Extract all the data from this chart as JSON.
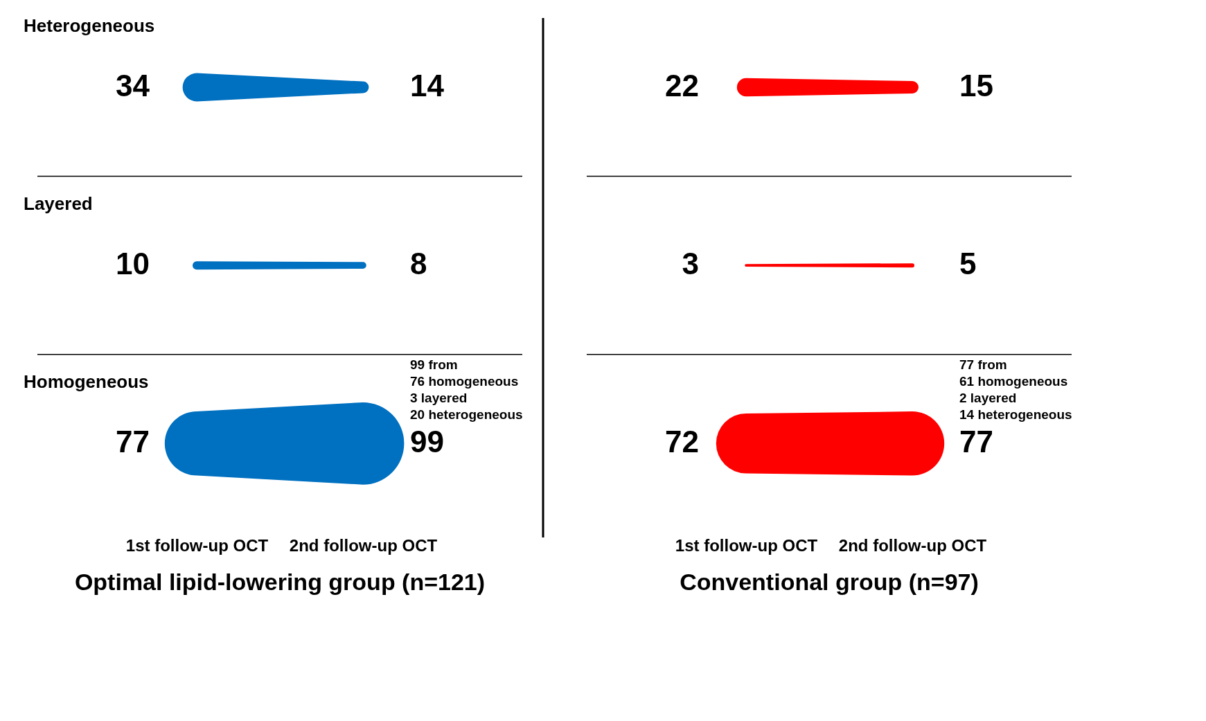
{
  "chart_data": [
    {
      "type": "other",
      "title": "Optimal lipid-lowering group  (n=121)",
      "categories": [
        "1st follow-up OCT",
        "2nd follow-up OCT"
      ],
      "y_categories": [
        "Heterogeneous",
        "Layered",
        "Homogeneous"
      ],
      "data_labels": true,
      "annotations": [
        "99 from",
        "76 homogeneous",
        "3 layered",
        "20 heterogeneous"
      ],
      "series": [
        {
          "color": "#0070c0",
          "values": [
            34,
            14
          ]
        },
        {
          "color": "#0070c0",
          "values": [
            10,
            8
          ]
        },
        {
          "color": "#0070c0",
          "values": [
            77,
            99
          ]
        }
      ]
    },
    {
      "type": "other",
      "title": "Conventional group (n=97)",
      "categories": [
        "1st follow-up OCT",
        "2nd follow-up OCT"
      ],
      "data_labels": true,
      "annotations": [
        "77 from",
        "61 homogeneous",
        "2 layered",
        "14 heterogeneous"
      ],
      "series": [
        {
          "color": "#ff0000",
          "values": [
            22,
            15
          ]
        },
        {
          "color": "#ff0000",
          "values": [
            3,
            5
          ]
        },
        {
          "color": "#ff0000",
          "values": [
            72,
            77
          ]
        }
      ]
    }
  ]
}
